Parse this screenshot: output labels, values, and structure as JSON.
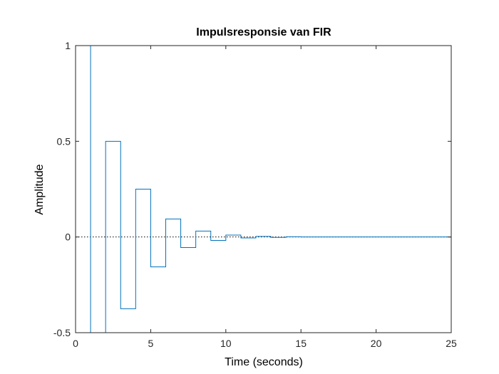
{
  "chart_data": {
    "type": "line",
    "style": "stairs",
    "title": "Impulsresponsie van FIR",
    "xlabel": "Time (seconds)",
    "ylabel": "Amplitude",
    "xlim": [
      0,
      25
    ],
    "ylim": [
      -0.5,
      1
    ],
    "xticks": [
      0,
      5,
      10,
      15,
      20,
      25
    ],
    "xtick_labels": [
      "0",
      "5",
      "10",
      "15",
      "20",
      "25"
    ],
    "yticks": [
      -0.5,
      0,
      0.5,
      1
    ],
    "ytick_labels": [
      "-0.5",
      "0",
      "0.5",
      "1"
    ],
    "grid": false,
    "zero_line": "dotted",
    "series_color": "#0072BD",
    "x": [
      0,
      1,
      2,
      3,
      4,
      5,
      6,
      7,
      8,
      9,
      10,
      11,
      12,
      13,
      14,
      15,
      16,
      17,
      18,
      19,
      20,
      21,
      22,
      23,
      24,
      25
    ],
    "y": [
      1,
      -0.5,
      0.5,
      -0.375,
      0.25,
      -0.156,
      0.094,
      -0.055,
      0.031,
      -0.018,
      0.01,
      -0.005,
      0.003,
      -0.002,
      0.001,
      0,
      0,
      0,
      0,
      0,
      0,
      0,
      0,
      0,
      0,
      0
    ]
  }
}
